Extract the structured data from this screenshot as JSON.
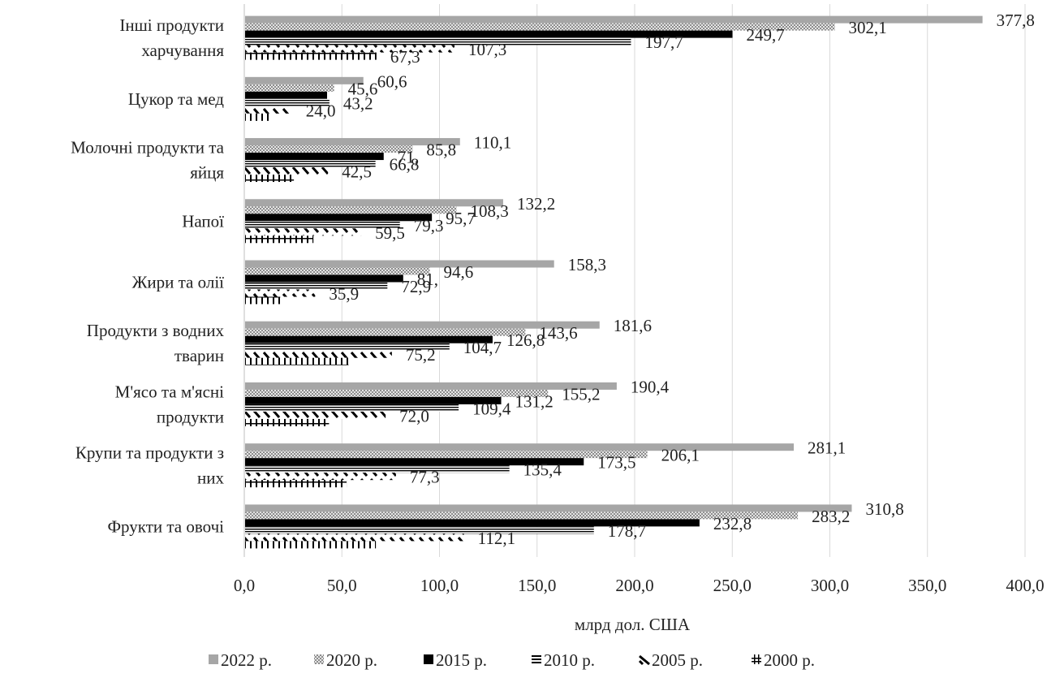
{
  "chart_data": {
    "type": "bar",
    "orientation": "horizontal",
    "title": "",
    "xlabel": "млрд дол. США",
    "ylabel": "",
    "xlim": [
      0,
      400
    ],
    "x_ticks": [
      "0,0",
      "50,0",
      "100,0",
      "150,0",
      "200,0",
      "250,0",
      "300,0",
      "350,0",
      "400,0"
    ],
    "grid": true,
    "legend_position": "bottom",
    "categories": [
      [
        "Інші продукти",
        "харчування"
      ],
      [
        "Цукор та мед"
      ],
      [
        "Молочні продукти та",
        "яйця"
      ],
      [
        "Напої"
      ],
      [
        "Жири та олії"
      ],
      [
        "Продукти з водних",
        "тварин"
      ],
      [
        "М'ясо та м'ясні",
        "продукти"
      ],
      [
        "Крупи та продукти з",
        "них"
      ],
      [
        "Фрукти та овочі"
      ]
    ],
    "series": [
      {
        "name": "2022 р.",
        "pattern": "solid-gray",
        "color": "#a6a6a6",
        "values": [
          377.8,
          60.6,
          110.1,
          132.2,
          158.3,
          181.6,
          190.4,
          281.1,
          310.8
        ],
        "labels": [
          "377,8",
          "60,6",
          "110,1",
          "132,2",
          "158,3",
          "181,6",
          "190,4",
          "281,1",
          "310,8"
        ]
      },
      {
        "name": "2020 р.",
        "pattern": "dots",
        "color": "#bfbfbf",
        "values": [
          302.1,
          45.6,
          85.8,
          108.3,
          94.6,
          143.6,
          155.2,
          206.1,
          283.2
        ],
        "labels": [
          "302,1",
          "45,6",
          "85,8",
          "108,3",
          "94,6",
          "143,6",
          "155,2",
          "206,1",
          "283,2"
        ]
      },
      {
        "name": "2015 р.",
        "pattern": "solid-black",
        "color": "#000000",
        "values": [
          249.7,
          42.0,
          71.0,
          95.7,
          81.0,
          126.8,
          131.2,
          173.5,
          232.8
        ],
        "labels": [
          "249,7",
          "",
          "71,",
          "95,7",
          "81,",
          "126,8",
          "131,2",
          "173,5",
          "232,8"
        ]
      },
      {
        "name": "2010 р.",
        "pattern": "horizontal-lines",
        "color": "#000000",
        "values": [
          197.7,
          43.2,
          66.8,
          79.3,
          72.9,
          104.7,
          109.4,
          135.4,
          178.7
        ],
        "labels": [
          "197,7",
          "43,2",
          "66,8",
          "79,3",
          "72,9",
          "104,7",
          "109,4",
          "135,4",
          "178,7"
        ]
      },
      {
        "name": "2005 р.",
        "pattern": "diagonal-dashes",
        "color": "#000000",
        "values": [
          107.3,
          24.0,
          42.5,
          59.5,
          35.9,
          75.2,
          72.0,
          77.3,
          112.1
        ],
        "labels": [
          "107,3",
          "24,0",
          "42,5",
          "59,5",
          "35,9",
          "75,2",
          "72,0",
          "77,3",
          "112,1"
        ]
      },
      {
        "name": "2000 р.",
        "pattern": "grid-ladder",
        "color": "#000000",
        "values": [
          67.3,
          14.0,
          25.0,
          35.0,
          18.0,
          53.0,
          43.0,
          52.0,
          67.0
        ],
        "labels": [
          "67,3",
          "",
          "",
          "",
          "",
          "",
          "",
          "",
          ""
        ]
      }
    ]
  }
}
